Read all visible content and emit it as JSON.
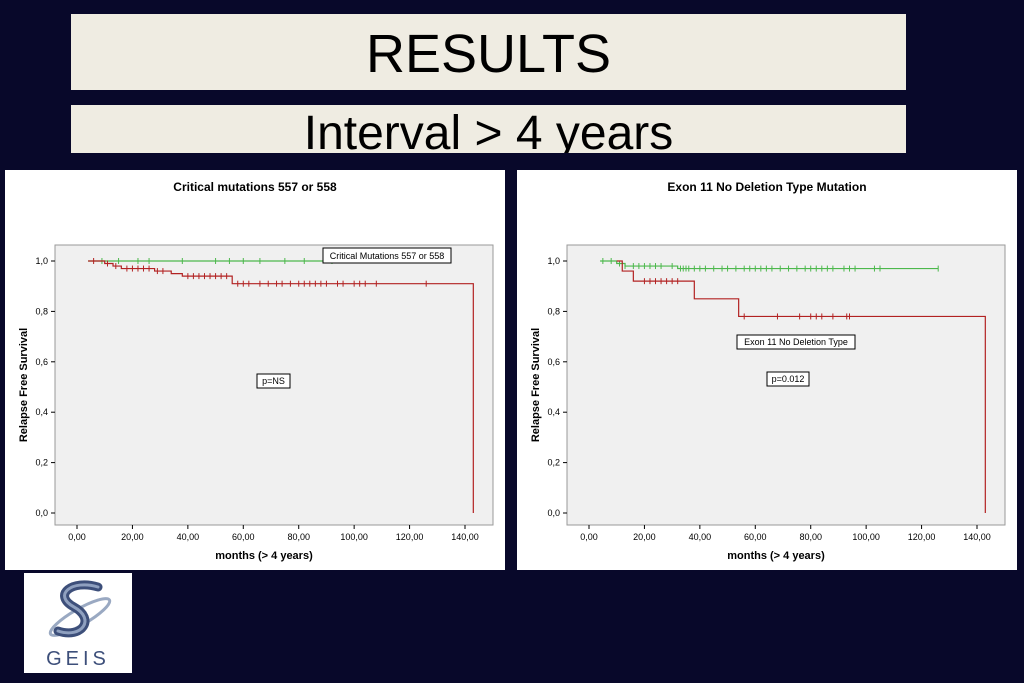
{
  "slide": {
    "title": "RESULTS",
    "subtitle": "Interval > 4 years"
  },
  "logo": {
    "text": "GEIS"
  },
  "colors": {
    "background": "#08082a",
    "banner": "#efece2",
    "plot_bg": "#f0f0f0",
    "green": "#4cb84c",
    "red": "#b22222"
  },
  "chart_data": [
    {
      "type": "line",
      "title": "Critical mutations 557 or 558",
      "xlabel": "months (> 4 years)",
      "ylabel": "Relapse Free Survival",
      "xlim": [
        0,
        140
      ],
      "ylim": [
        0,
        1
      ],
      "xticks": [
        "0,00",
        "20,00",
        "40,00",
        "60,00",
        "80,00",
        "100,00",
        "120,00",
        "140,00"
      ],
      "yticks": [
        "0,0",
        "0,2",
        "0,4",
        "0,6",
        "0,8",
        "1,0"
      ],
      "legend": "Critical Mutations 557 or 558",
      "annotation": "p=NS",
      "series": [
        {
          "color": "green",
          "steps": [
            [
              4,
              1.0
            ],
            [
              92,
              1.0
            ]
          ],
          "censored": [
            9,
            15,
            22,
            26,
            38,
            50,
            55,
            60,
            66,
            75,
            82,
            92
          ]
        },
        {
          "color": "red",
          "steps": [
            [
              4,
              1.0
            ],
            [
              10,
              0.99
            ],
            [
              13,
              0.98
            ],
            [
              16,
              0.97
            ],
            [
              28,
              0.96
            ],
            [
              34,
              0.95
            ],
            [
              38,
              0.94
            ],
            [
              56,
              0.91
            ],
            [
              143,
              0.91
            ],
            [
              143,
              0.0
            ]
          ],
          "censored": [
            6,
            11,
            14,
            18,
            20,
            22,
            24,
            26,
            29,
            31,
            40,
            42,
            44,
            46,
            48,
            50,
            52,
            54,
            58,
            60,
            62,
            66,
            69,
            72,
            74,
            77,
            80,
            82,
            84,
            86,
            88,
            90,
            94,
            96,
            100,
            102,
            104,
            108,
            126
          ]
        }
      ]
    },
    {
      "type": "line",
      "title": "Exon 11 No Deletion Type Mutation",
      "xlabel": "months (> 4 years)",
      "ylabel": "Relapse Free Survival",
      "xlim": [
        0,
        140
      ],
      "ylim": [
        0,
        1
      ],
      "xticks": [
        "0,00",
        "20,00",
        "40,00",
        "60,00",
        "80,00",
        "100,00",
        "120,00",
        "140,00"
      ],
      "yticks": [
        "0,0",
        "0,2",
        "0,4",
        "0,6",
        "0,8",
        "1,0"
      ],
      "legend": "Exon 11 No Deletion Type",
      "annotation": "p=0.012",
      "series": [
        {
          "color": "green",
          "steps": [
            [
              4,
              1.0
            ],
            [
              10,
              0.99
            ],
            [
              13,
              0.98
            ],
            [
              32,
              0.97
            ],
            [
              126,
              0.97
            ]
          ],
          "censored": [
            5,
            8,
            11,
            13,
            16,
            18,
            20,
            22,
            24,
            26,
            30,
            33,
            34,
            35,
            36,
            38,
            40,
            42,
            45,
            48,
            50,
            53,
            56,
            58,
            60,
            62,
            64,
            66,
            69,
            72,
            75,
            78,
            80,
            82,
            84,
            86,
            88,
            92,
            94,
            96,
            103,
            105,
            126
          ]
        },
        {
          "color": "red",
          "steps": [
            [
              10,
              1.0
            ],
            [
              12,
              0.96
            ],
            [
              16,
              0.92
            ],
            [
              38,
              0.85
            ],
            [
              54,
              0.78
            ],
            [
              143,
              0.78
            ],
            [
              143,
              0.0
            ]
          ],
          "censored": [
            20,
            22,
            24,
            26,
            28,
            30,
            32,
            56,
            68,
            76,
            80,
            82,
            84,
            88,
            93,
            94
          ]
        }
      ]
    }
  ]
}
